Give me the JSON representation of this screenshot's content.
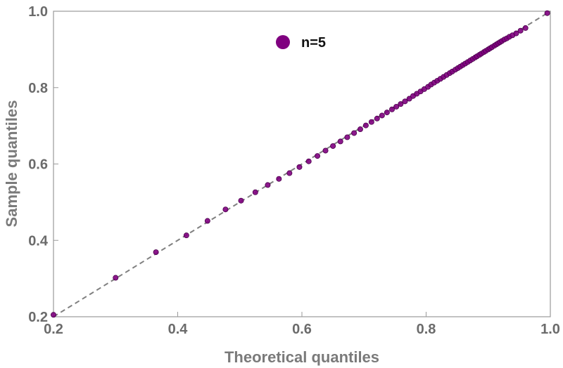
{
  "chart_data": {
    "type": "scatter",
    "xlabel": "Theoretical quantiles",
    "ylabel": "Sample quantiles",
    "xlim": [
      0.2,
      1.0
    ],
    "ylim": [
      0.2,
      1.0
    ],
    "x_ticks": [
      "0.2",
      "0.4",
      "0.6",
      "0.8",
      "1.0"
    ],
    "y_ticks": [
      "0.2",
      "0.4",
      "0.6",
      "0.8",
      "1.0"
    ],
    "grid": false,
    "legend": {
      "position": "top-center",
      "entries": [
        {
          "label": "n=5",
          "color": "#800080"
        }
      ]
    },
    "reference_line": {
      "style": "dashed",
      "color": "#808080",
      "from": [
        0.2,
        0.2
      ],
      "to": [
        1.0,
        1.0
      ]
    },
    "series": [
      {
        "name": "n=5",
        "color": "#800080",
        "points": [
          [
            0.2,
            0.205
          ],
          [
            0.3,
            0.302
          ],
          [
            0.365,
            0.369
          ],
          [
            0.414,
            0.413
          ],
          [
            0.448,
            0.451
          ],
          [
            0.477,
            0.481
          ],
          [
            0.502,
            0.504
          ],
          [
            0.525,
            0.526
          ],
          [
            0.545,
            0.545
          ],
          [
            0.563,
            0.561
          ],
          [
            0.58,
            0.576
          ],
          [
            0.596,
            0.592
          ],
          [
            0.611,
            0.607
          ],
          [
            0.625,
            0.621
          ],
          [
            0.638,
            0.635
          ],
          [
            0.65,
            0.647
          ],
          [
            0.662,
            0.659
          ],
          [
            0.673,
            0.67
          ],
          [
            0.684,
            0.681
          ],
          [
            0.694,
            0.691
          ],
          [
            0.703,
            0.701
          ],
          [
            0.712,
            0.71
          ],
          [
            0.721,
            0.719
          ],
          [
            0.729,
            0.727
          ],
          [
            0.737,
            0.735
          ],
          [
            0.745,
            0.743
          ],
          [
            0.752,
            0.75
          ],
          [
            0.759,
            0.757
          ],
          [
            0.766,
            0.764
          ],
          [
            0.773,
            0.771
          ],
          [
            0.779,
            0.778
          ],
          [
            0.785,
            0.784
          ],
          [
            0.791,
            0.79
          ],
          [
            0.797,
            0.796
          ],
          [
            0.803,
            0.802
          ],
          [
            0.808,
            0.808
          ],
          [
            0.813,
            0.813
          ],
          [
            0.818,
            0.818
          ],
          [
            0.823,
            0.823
          ],
          [
            0.828,
            0.828
          ],
          [
            0.833,
            0.833
          ],
          [
            0.838,
            0.838
          ],
          [
            0.842,
            0.842
          ],
          [
            0.847,
            0.847
          ],
          [
            0.851,
            0.851
          ],
          [
            0.855,
            0.855
          ],
          [
            0.859,
            0.859
          ],
          [
            0.863,
            0.863
          ],
          [
            0.867,
            0.867
          ],
          [
            0.871,
            0.871
          ],
          [
            0.875,
            0.875
          ],
          [
            0.879,
            0.879
          ],
          [
            0.882,
            0.882
          ],
          [
            0.886,
            0.886
          ],
          [
            0.889,
            0.889
          ],
          [
            0.893,
            0.893
          ],
          [
            0.896,
            0.896
          ],
          [
            0.9,
            0.9
          ],
          [
            0.903,
            0.903
          ],
          [
            0.906,
            0.906
          ],
          [
            0.91,
            0.91
          ],
          [
            0.913,
            0.913
          ],
          [
            0.916,
            0.916
          ],
          [
            0.919,
            0.919
          ],
          [
            0.922,
            0.922
          ],
          [
            0.926,
            0.926
          ],
          [
            0.93,
            0.929
          ],
          [
            0.934,
            0.933
          ],
          [
            0.939,
            0.937
          ],
          [
            0.945,
            0.942
          ],
          [
            0.952,
            0.949
          ],
          [
            0.96,
            0.956
          ],
          [
            0.995,
            0.995
          ]
        ]
      }
    ]
  }
}
